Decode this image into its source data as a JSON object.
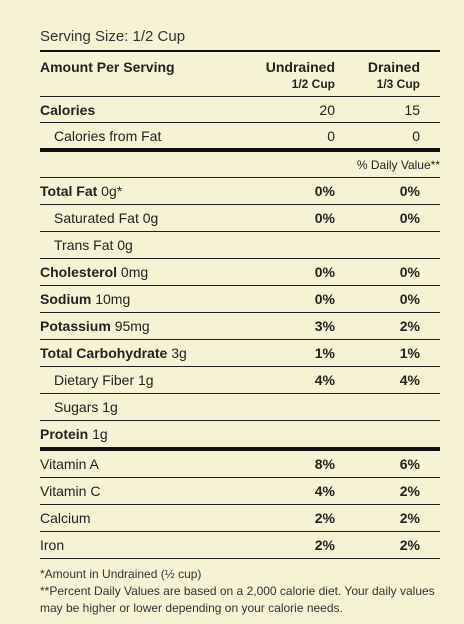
{
  "serving_size": "Serving Size: 1/2 Cup",
  "header": {
    "amount_per_serving": "Amount Per Serving",
    "col1_title": "Undrained",
    "col1_sub": "1/2 Cup",
    "col2_title": "Drained",
    "col2_sub": "1/3 Cup"
  },
  "calories": {
    "label": "Calories",
    "v1": "20",
    "v2": "15"
  },
  "calories_fat": {
    "label": "Calories from Fat",
    "v1": "0",
    "v2": "0"
  },
  "daily_value_label": "% Daily Value**",
  "nutrients": [
    {
      "bold": "Total Fat",
      "amount": " 0g*",
      "v1": "0%",
      "v2": "0%"
    },
    {
      "bold": "",
      "amount": "Saturated Fat 0g",
      "v1": "0%",
      "v2": "0%",
      "indent": true
    },
    {
      "bold": "",
      "amount": "Trans Fat 0g",
      "v1": "",
      "v2": "",
      "indent": true
    },
    {
      "bold": "Cholesterol",
      "amount": " 0mg",
      "v1": "0%",
      "v2": "0%"
    },
    {
      "bold": "Sodium",
      "amount": " 10mg",
      "v1": "0%",
      "v2": "0%"
    },
    {
      "bold": "Potassium",
      "amount": " 95mg",
      "v1": "3%",
      "v2": "2%"
    },
    {
      "bold": "Total Carbohydrate",
      "amount": " 3g",
      "v1": "1%",
      "v2": "1%"
    },
    {
      "bold": "",
      "amount": "Dietary Fiber 1g",
      "v1": "4%",
      "v2": "4%",
      "indent": true
    },
    {
      "bold": "",
      "amount": "Sugars 1g",
      "v1": "",
      "v2": "",
      "indent": true
    },
    {
      "bold": "Protein",
      "amount": " 1g",
      "v1": "",
      "v2": ""
    }
  ],
  "vitamins": [
    {
      "label": "Vitamin A",
      "v1": "8%",
      "v2": "6%"
    },
    {
      "label": "Vitamin C",
      "v1": "4%",
      "v2": "2%"
    },
    {
      "label": "Calcium",
      "v1": "2%",
      "v2": "2%"
    },
    {
      "label": "Iron",
      "v1": "2%",
      "v2": "2%"
    }
  ],
  "footnotes": {
    "line1": "*Amount in Undrained (½ cup)",
    "line2": "**Percent Daily Values are based on a 2,000 calorie diet. Your daily values may be higher or lower depending on your calorie needs."
  }
}
